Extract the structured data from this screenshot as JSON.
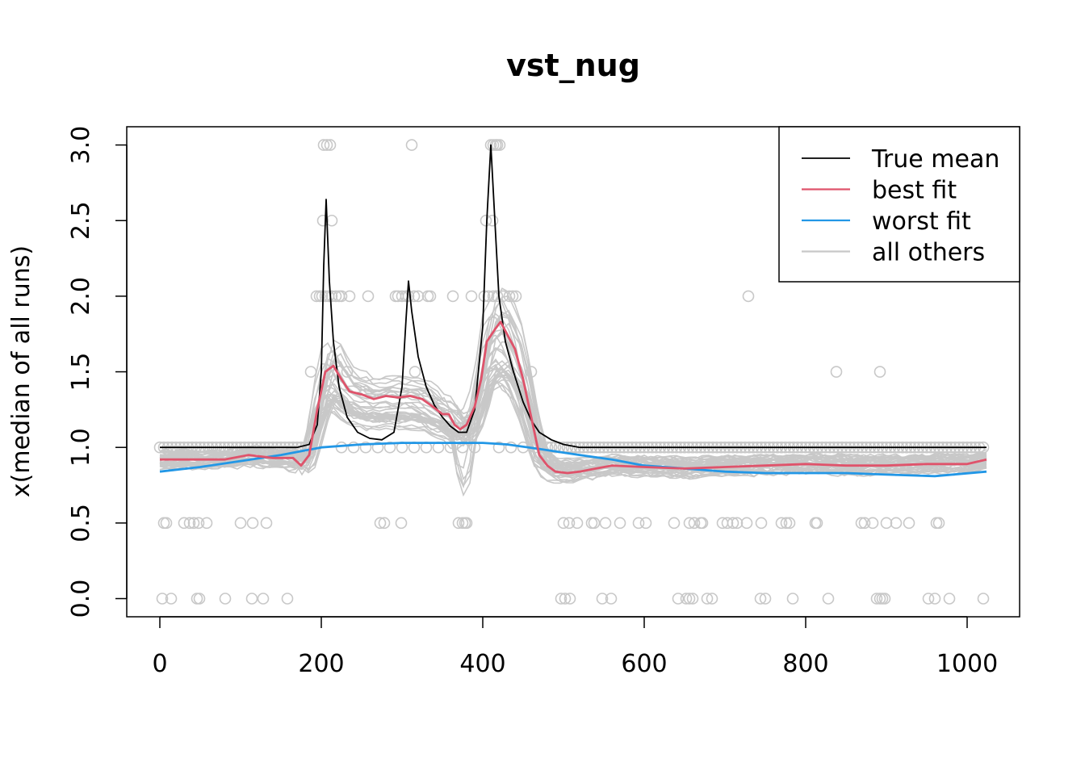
{
  "chart_data": {
    "type": "line",
    "title": "vst_nug",
    "xlabel": "",
    "ylabel": "x(median of all runs)",
    "xlim": [
      0,
      1024
    ],
    "ylim": [
      0,
      3
    ],
    "x_ticks": [
      0,
      200,
      400,
      600,
      800,
      1000
    ],
    "y_ticks": [
      0.0,
      0.5,
      1.0,
      1.5,
      2.0,
      2.5,
      3.0
    ],
    "y_tick_labels": [
      "0.0",
      "0.5",
      "1.0",
      "1.5",
      "2.0",
      "2.5",
      "3.0"
    ],
    "legend": {
      "position": "top-right",
      "entries": [
        {
          "label": "True mean",
          "color": "#000000"
        },
        {
          "label": "best fit",
          "color": "#DF536B"
        },
        {
          "label": "worst fit",
          "color": "#2297E6"
        },
        {
          "label": "all others",
          "color": "#C8C8C8"
        }
      ]
    },
    "series": [
      {
        "name": "True mean",
        "color": "#000000",
        "points": [
          [
            0,
            1.0
          ],
          [
            170,
            1.0
          ],
          [
            185,
            1.02
          ],
          [
            195,
            1.15
          ],
          [
            200,
            1.5
          ],
          [
            203,
            2.2
          ],
          [
            206,
            2.64
          ],
          [
            210,
            2.1
          ],
          [
            215,
            1.7
          ],
          [
            222,
            1.4
          ],
          [
            232,
            1.2
          ],
          [
            245,
            1.1
          ],
          [
            260,
            1.06
          ],
          [
            275,
            1.05
          ],
          [
            290,
            1.1
          ],
          [
            300,
            1.4
          ],
          [
            305,
            1.85
          ],
          [
            308,
            2.1
          ],
          [
            312,
            1.9
          ],
          [
            320,
            1.6
          ],
          [
            330,
            1.4
          ],
          [
            340,
            1.28
          ],
          [
            350,
            1.2
          ],
          [
            360,
            1.14
          ],
          [
            370,
            1.1
          ],
          [
            380,
            1.1
          ],
          [
            390,
            1.25
          ],
          [
            400,
            1.8
          ],
          [
            405,
            2.5
          ],
          [
            410,
            3.0
          ],
          [
            415,
            2.5
          ],
          [
            420,
            2.0
          ],
          [
            428,
            1.7
          ],
          [
            438,
            1.5
          ],
          [
            450,
            1.3
          ],
          [
            460,
            1.18
          ],
          [
            470,
            1.1
          ],
          [
            485,
            1.05
          ],
          [
            500,
            1.02
          ],
          [
            520,
            1.0
          ],
          [
            1024,
            1.0
          ]
        ]
      },
      {
        "name": "best fit",
        "color": "#DF536B",
        "points": [
          [
            0,
            0.92
          ],
          [
            40,
            0.92
          ],
          [
            80,
            0.92
          ],
          [
            110,
            0.95
          ],
          [
            140,
            0.93
          ],
          [
            165,
            0.93
          ],
          [
            175,
            0.88
          ],
          [
            185,
            0.95
          ],
          [
            195,
            1.25
          ],
          [
            205,
            1.5
          ],
          [
            215,
            1.54
          ],
          [
            225,
            1.45
          ],
          [
            235,
            1.37
          ],
          [
            250,
            1.35
          ],
          [
            265,
            1.32
          ],
          [
            280,
            1.34
          ],
          [
            295,
            1.33
          ],
          [
            310,
            1.34
          ],
          [
            325,
            1.32
          ],
          [
            338,
            1.27
          ],
          [
            350,
            1.22
          ],
          [
            358,
            1.22
          ],
          [
            365,
            1.15
          ],
          [
            372,
            1.12
          ],
          [
            380,
            1.15
          ],
          [
            390,
            1.27
          ],
          [
            398,
            1.45
          ],
          [
            405,
            1.7
          ],
          [
            415,
            1.78
          ],
          [
            422,
            1.83
          ],
          [
            430,
            1.75
          ],
          [
            440,
            1.65
          ],
          [
            450,
            1.45
          ],
          [
            460,
            1.2
          ],
          [
            470,
            0.95
          ],
          [
            480,
            0.88
          ],
          [
            490,
            0.84
          ],
          [
            505,
            0.83
          ],
          [
            520,
            0.84
          ],
          [
            540,
            0.86
          ],
          [
            560,
            0.88
          ],
          [
            600,
            0.87
          ],
          [
            650,
            0.86
          ],
          [
            700,
            0.87
          ],
          [
            750,
            0.88
          ],
          [
            800,
            0.89
          ],
          [
            850,
            0.88
          ],
          [
            900,
            0.88
          ],
          [
            950,
            0.89
          ],
          [
            1000,
            0.89
          ],
          [
            1024,
            0.92
          ]
        ]
      },
      {
        "name": "worst fit",
        "color": "#2297E6",
        "points": [
          [
            0,
            0.84
          ],
          [
            50,
            0.87
          ],
          [
            100,
            0.91
          ],
          [
            150,
            0.95
          ],
          [
            200,
            1.0
          ],
          [
            250,
            1.02
          ],
          [
            300,
            1.03
          ],
          [
            350,
            1.03
          ],
          [
            400,
            1.03
          ],
          [
            430,
            1.02
          ],
          [
            470,
            0.99
          ],
          [
            520,
            0.95
          ],
          [
            560,
            0.92
          ],
          [
            600,
            0.88
          ],
          [
            650,
            0.86
          ],
          [
            700,
            0.84
          ],
          [
            750,
            0.83
          ],
          [
            800,
            0.83
          ],
          [
            850,
            0.83
          ],
          [
            900,
            0.82
          ],
          [
            960,
            0.81
          ],
          [
            1024,
            0.84
          ]
        ]
      }
    ],
    "others": {
      "name": "all others",
      "color": "#C8C8C8",
      "count": 40
    },
    "observed_points": {
      "color": "#C8C8C8",
      "zero_x": [
        3,
        14,
        46,
        49,
        81,
        114,
        128,
        158,
        497,
        502,
        508,
        548,
        559,
        642,
        652,
        656,
        660,
        678,
        684,
        744,
        750,
        784,
        828,
        888,
        892,
        895,
        898,
        952,
        960,
        978,
        1020
      ],
      "half_x": [
        5,
        8,
        30,
        37,
        42,
        48,
        58,
        100,
        115,
        132,
        273,
        278,
        299,
        370,
        375,
        378,
        380,
        500,
        507,
        517,
        535,
        538,
        552,
        570,
        593,
        602,
        637,
        656,
        662,
        670,
        672,
        697,
        703,
        710,
        715,
        727,
        745,
        770,
        776,
        780,
        812,
        814,
        869,
        873,
        883,
        900,
        912,
        928,
        962,
        965
      ],
      "one_and_half_x": [
        187,
        232,
        316,
        460,
        838,
        892
      ],
      "two_x": [
        194,
        198,
        201,
        205,
        209,
        213,
        218,
        222,
        225,
        235,
        258,
        292,
        295,
        300,
        305,
        308,
        315,
        320,
        332,
        335,
        363,
        386,
        402,
        407,
        413,
        418,
        425,
        433,
        437,
        441,
        729
      ],
      "two_and_half_x": [
        202,
        213,
        404,
        412
      ],
      "three_x": [
        203,
        207,
        211,
        312,
        410,
        413,
        416,
        418,
        421
      ]
    }
  }
}
